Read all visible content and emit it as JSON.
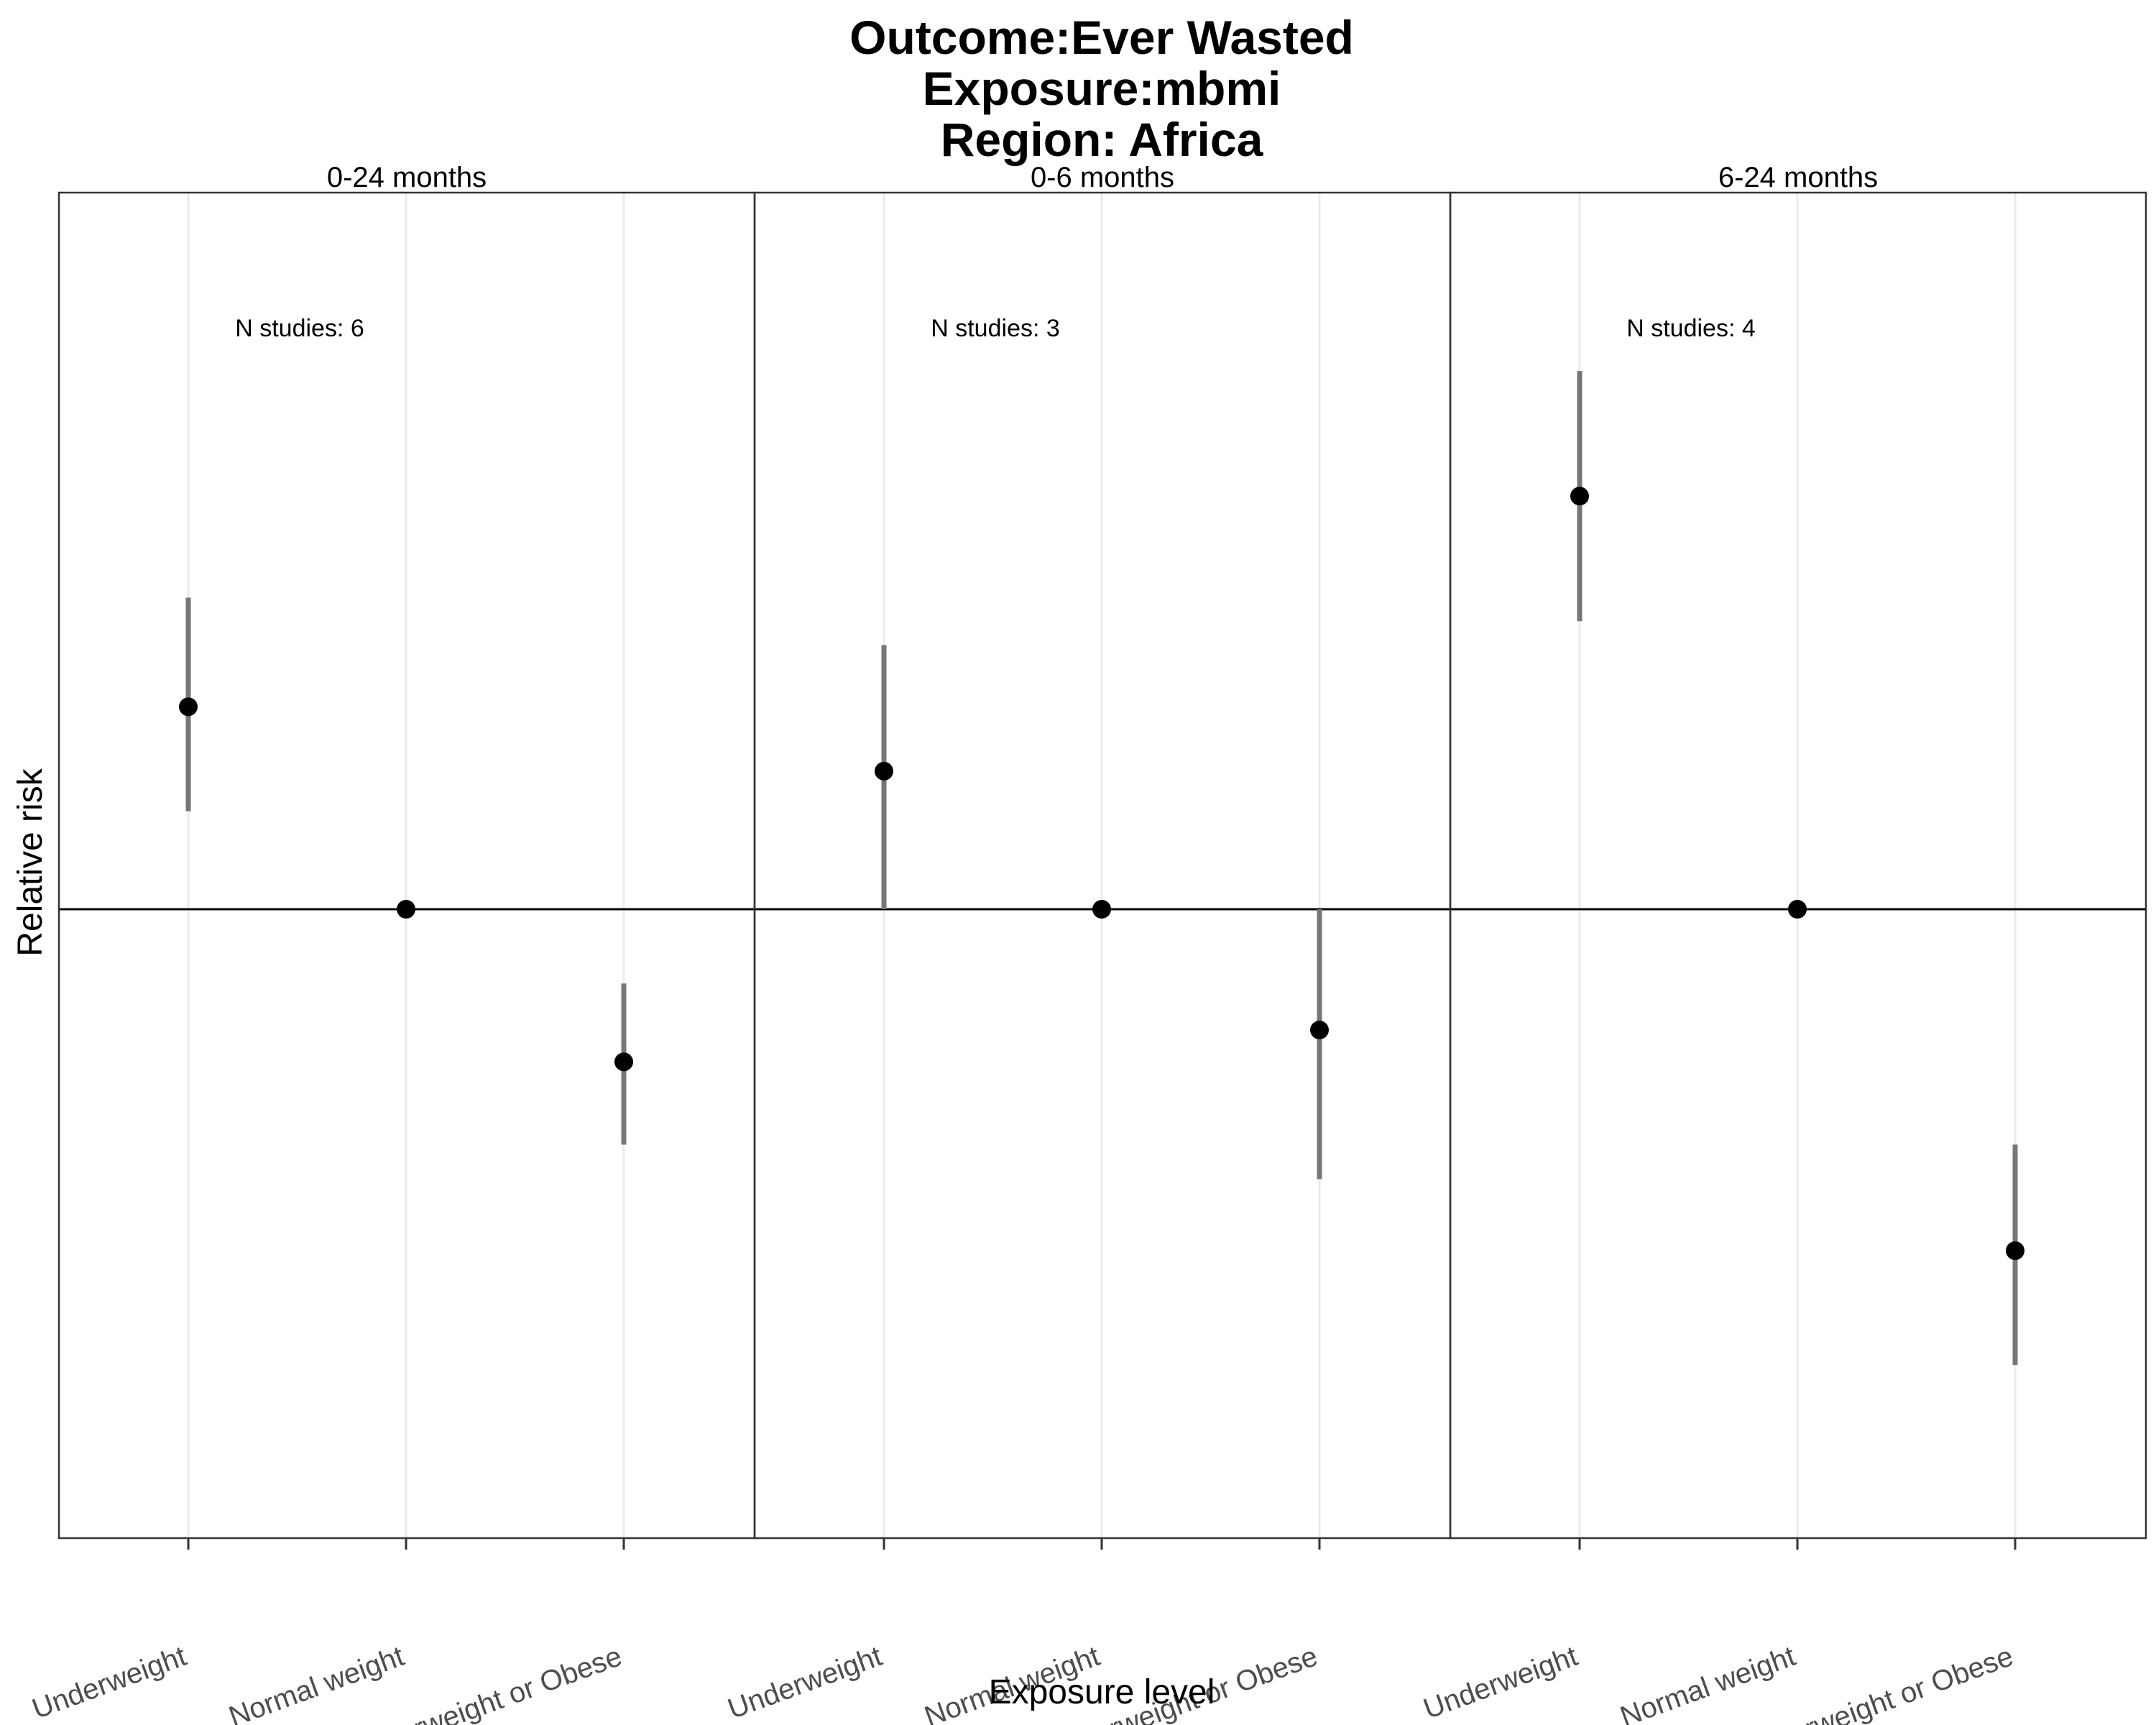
{
  "chart_data": {
    "type": "scatter",
    "title_lines": [
      "Outcome:Ever Wasted",
      "Exposure:mbmi",
      "Region: Africa"
    ],
    "xlabel": "Exposure level",
    "ylabel": "Relative risk",
    "categories": [
      "Underweight",
      "Normal weight",
      "Overweight or Obese"
    ],
    "reference_line": 1.0,
    "y_scale": "log",
    "ylim": [
      0.7,
      1.64
    ],
    "panels": [
      {
        "label": "0-24 months",
        "n_studies_text": "N studies: 6",
        "points": [
          {
            "category": "Underweight",
            "rr": 1.15,
            "lower": 1.07,
            "upper": 1.24
          },
          {
            "category": "Normal weight",
            "rr": 1.0,
            "lower": 1.0,
            "upper": 1.0
          },
          {
            "category": "Overweight or Obese",
            "rr": 0.9,
            "lower": 0.85,
            "upper": 0.95
          }
        ]
      },
      {
        "label": "0-6 months",
        "n_studies_text": "N studies: 3",
        "points": [
          {
            "category": "Underweight",
            "rr": 1.1,
            "lower": 1.0,
            "upper": 1.2
          },
          {
            "category": "Normal weight",
            "rr": 1.0,
            "lower": 1.0,
            "upper": 1.0
          },
          {
            "category": "Overweight or Obese",
            "rr": 0.92,
            "lower": 0.83,
            "upper": 1.0
          }
        ]
      },
      {
        "label": "6-24 months",
        "n_studies_text": "N studies: 4",
        "points": [
          {
            "category": "Underweight",
            "rr": 1.33,
            "lower": 1.22,
            "upper": 1.45
          },
          {
            "category": "Normal weight",
            "rr": 1.0,
            "lower": 1.0,
            "upper": 1.0
          },
          {
            "category": "Overweight or Obese",
            "rr": 0.79,
            "lower": 0.73,
            "upper": 0.85
          }
        ]
      }
    ],
    "grid": true,
    "colors": {
      "point": "#000000",
      "interval": "#777777",
      "grid": "#ebebeb",
      "frame": "#333333"
    }
  }
}
